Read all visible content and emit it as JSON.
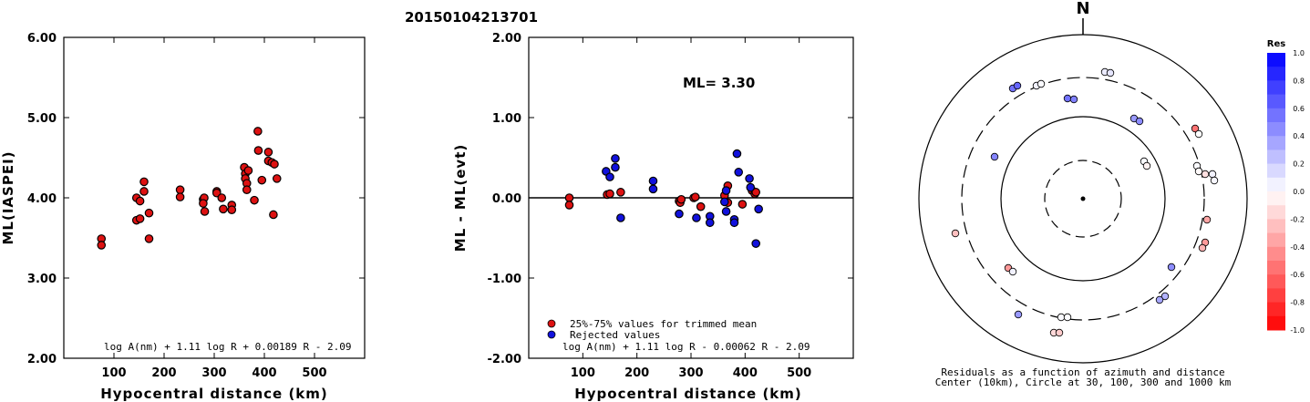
{
  "title": "20150104213701",
  "chart_data": [
    {
      "type": "scatter",
      "name": "magnitude_vs_distance",
      "xlabel": "Hypocentral distance (km)",
      "ylabel": "ML(IASPEI)",
      "xlim": [
        0,
        600
      ],
      "ylim": [
        2.0,
        6.0
      ],
      "xticks": [
        "100",
        "200",
        "300",
        "400",
        "500"
      ],
      "yticks": [
        "2.00",
        "3.00",
        "4.00",
        "5.00",
        "6.00"
      ],
      "formula": "log A(nm) + 1.11 log R + 0.00189 R - 2.09",
      "point_color": "#dd1111",
      "points": [
        [
          75,
          3.49
        ],
        [
          75,
          3.41
        ],
        [
          145,
          4.0
        ],
        [
          152,
          3.96
        ],
        [
          145,
          3.72
        ],
        [
          152,
          3.74
        ],
        [
          160,
          4.2
        ],
        [
          160,
          4.08
        ],
        [
          170,
          3.81
        ],
        [
          170,
          3.49
        ],
        [
          232,
          4.1
        ],
        [
          232,
          4.01
        ],
        [
          278,
          3.98
        ],
        [
          280,
          4.0
        ],
        [
          278,
          3.93
        ],
        [
          281,
          3.83
        ],
        [
          305,
          4.08
        ],
        [
          305,
          4.06
        ],
        [
          315,
          4.0
        ],
        [
          318,
          3.86
        ],
        [
          335,
          3.91
        ],
        [
          335,
          3.85
        ],
        [
          360,
          4.38
        ],
        [
          362,
          4.3
        ],
        [
          362,
          4.24
        ],
        [
          368,
          4.34
        ],
        [
          365,
          4.18
        ],
        [
          365,
          4.1
        ],
        [
          380,
          3.97
        ],
        [
          387,
          4.83
        ],
        [
          388,
          4.59
        ],
        [
          395,
          4.22
        ],
        [
          408,
          4.57
        ],
        [
          408,
          4.46
        ],
        [
          415,
          4.44
        ],
        [
          418,
          3.79
        ],
        [
          420,
          4.42
        ],
        [
          425,
          4.24
        ]
      ]
    },
    {
      "type": "scatter",
      "name": "residual_vs_distance",
      "xlabel": "Hypocentral distance (km)",
      "ylabel": "ML - ML(evt)",
      "xlim": [
        0,
        600
      ],
      "ylim": [
        -2.0,
        2.0
      ],
      "xticks": [
        "100",
        "200",
        "300",
        "400",
        "500"
      ],
      "yticks": [
        "-2.00",
        "-1.00",
        "0.00",
        "1.00",
        "2.00"
      ],
      "annotation": "ML= 3.30",
      "formula": "log A(nm) + 1.11 log R - 0.00062 R - 2.09",
      "legend": [
        {
          "label": "25%-75% values for trimmed mean",
          "color": "#dd1111"
        },
        {
          "label": "Rejected values",
          "color": "#1111dd"
        }
      ],
      "series": [
        {
          "name": "25%-75% values for trimmed mean",
          "color": "#dd1111",
          "points": [
            [
              75,
              0.0
            ],
            [
              75,
              -0.09
            ],
            [
              145,
              0.04
            ],
            [
              150,
              0.05
            ],
            [
              170,
              0.07
            ],
            [
              278,
              -0.04
            ],
            [
              280,
              -0.06
            ],
            [
              282,
              -0.02
            ],
            [
              305,
              0.0
            ],
            [
              308,
              0.01
            ],
            [
              318,
              -0.11
            ],
            [
              362,
              0.03
            ],
            [
              368,
              0.15
            ],
            [
              368,
              -0.06
            ],
            [
              395,
              -0.08
            ],
            [
              413,
              0.09
            ],
            [
              418,
              0.05
            ],
            [
              420,
              0.07
            ]
          ]
        },
        {
          "name": "Rejected values",
          "color": "#1111dd",
          "points": [
            [
              143,
              0.33
            ],
            [
              150,
              0.26
            ],
            [
              160,
              0.49
            ],
            [
              160,
              0.38
            ],
            [
              170,
              -0.25
            ],
            [
              230,
              0.21
            ],
            [
              230,
              0.11
            ],
            [
              278,
              -0.2
            ],
            [
              310,
              -0.25
            ],
            [
              335,
              -0.23
            ],
            [
              335,
              -0.31
            ],
            [
              362,
              -0.05
            ],
            [
              365,
              0.09
            ],
            [
              365,
              -0.17
            ],
            [
              380,
              -0.27
            ],
            [
              380,
              -0.31
            ],
            [
              385,
              0.55
            ],
            [
              388,
              0.32
            ],
            [
              408,
              0.24
            ],
            [
              410,
              0.13
            ],
            [
              420,
              -0.57
            ],
            [
              425,
              -0.14
            ]
          ]
        }
      ]
    },
    {
      "type": "scatter",
      "name": "azimuth_distance_residuals",
      "north_label": "N",
      "caption_line1": "Residuals as a function of azimuth and distance",
      "caption_line2": "Center (10km), Circle at 30, 100, 300 and 1000 km",
      "colorbar_title": "Res",
      "colorbar_ticks": [
        "1.0",
        "0.8",
        "0.6",
        "0.4",
        "0.2",
        "0.0",
        "-0.2",
        "-0.4",
        "-0.6",
        "-0.8",
        "-1.0"
      ],
      "colorbar_range": [
        -1.0,
        1.0
      ],
      "positive_color": "#0000ff",
      "negative_color": "#ff0000",
      "points": [
        {
          "x": 1111,
          "y": 97,
          "res": 0.55
        },
        {
          "x": 1116,
          "y": 94,
          "res": 0.6
        },
        {
          "x": 1137,
          "y": 94,
          "res": 0.05
        },
        {
          "x": 1142,
          "y": 92,
          "res": 0.02
        },
        {
          "x": 1212,
          "y": 79,
          "res": 0.08
        },
        {
          "x": 1218,
          "y": 80,
          "res": 0.1
        },
        {
          "x": 1171,
          "y": 108,
          "res": 0.55
        },
        {
          "x": 1178,
          "y": 109,
          "res": 0.5
        },
        {
          "x": 1244,
          "y": 130,
          "res": 0.4
        },
        {
          "x": 1250,
          "y": 133,
          "res": 0.45
        },
        {
          "x": 1311,
          "y": 141,
          "res": -0.55
        },
        {
          "x": 1315,
          "y": 147,
          "res": 0.0
        },
        {
          "x": 1091,
          "y": 172,
          "res": 0.48
        },
        {
          "x": 1255,
          "y": 177,
          "res": 0.02
        },
        {
          "x": 1258,
          "y": 182,
          "res": -0.05
        },
        {
          "x": 1313,
          "y": 182,
          "res": 0.02
        },
        {
          "x": 1315,
          "y": 188,
          "res": -0.02
        },
        {
          "x": 1322,
          "y": 191,
          "res": -0.12
        },
        {
          "x": 1330,
          "y": 191,
          "res": 0.05
        },
        {
          "x": 1332,
          "y": 198,
          "res": 0.03
        },
        {
          "x": 1324,
          "y": 241,
          "res": -0.35
        },
        {
          "x": 1322,
          "y": 266,
          "res": -0.4
        },
        {
          "x": 1319,
          "y": 272,
          "res": -0.3
        },
        {
          "x": 1048,
          "y": 256,
          "res": -0.25
        },
        {
          "x": 1106,
          "y": 294,
          "res": -0.4
        },
        {
          "x": 1111,
          "y": 298,
          "res": 0.05
        },
        {
          "x": 1285,
          "y": 293,
          "res": 0.45
        },
        {
          "x": 1278,
          "y": 325,
          "res": 0.3
        },
        {
          "x": 1272,
          "y": 329,
          "res": 0.35
        },
        {
          "x": 1117,
          "y": 345,
          "res": 0.4
        },
        {
          "x": 1164,
          "y": 348,
          "res": 0.02
        },
        {
          "x": 1171,
          "y": 348,
          "res": 0.01
        },
        {
          "x": 1156,
          "y": 365,
          "res": -0.15
        },
        {
          "x": 1162,
          "y": 365,
          "res": -0.2
        }
      ]
    }
  ]
}
